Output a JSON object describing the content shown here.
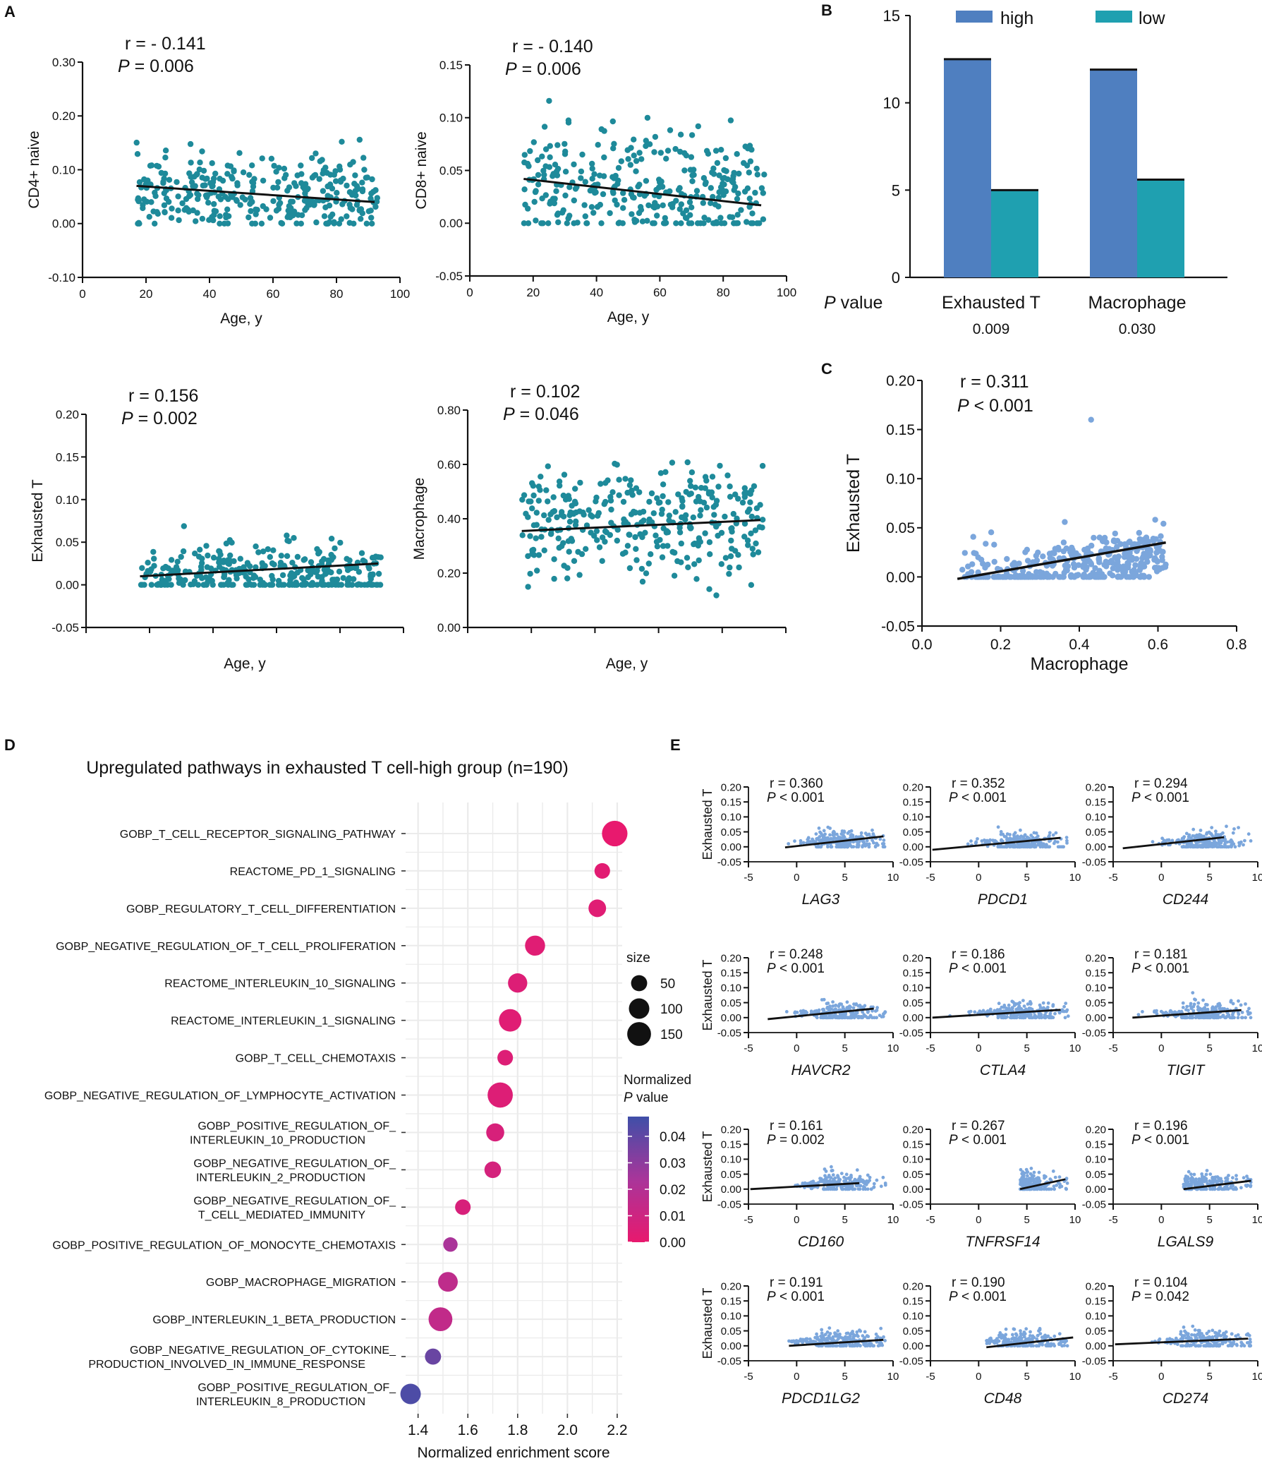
{
  "colors": {
    "teal": "#1E8A9A",
    "blue_bar": "#4F7FC0",
    "teal_bar": "#1FA0B0",
    "light_blue": "#7BA6DC",
    "fit_line": "#111111",
    "grid": "#EBEBEB",
    "p_low": "#E8196E",
    "p_mid": "#A9359A",
    "p_high": "#3F4FA8"
  },
  "panel_labels": {
    "A": "A",
    "B": "B",
    "C": "C",
    "D": "D",
    "E": "E"
  },
  "panel_a": {
    "age_label": "Age, y",
    "plots": [
      {
        "name": "cd4",
        "ylabel": "CD4+ naive",
        "r": "r = - 0.141",
        "p_prefix": "P",
        "p_rest": " = 0.006",
        "xlim": [
          0,
          100
        ],
        "ylim": [
          -0.1,
          0.3
        ],
        "xticks": [
          "0",
          "20",
          "40",
          "60",
          "80",
          "100"
        ],
        "yticks": [
          "-0.10",
          "0.00",
          "0.10",
          "0.20",
          "0.30"
        ],
        "show_xticks": true
      },
      {
        "name": "cd8",
        "ylabel": "CD8+ naive",
        "r": "r = - 0.140",
        "p_prefix": "P",
        "p_rest": " = 0.006",
        "xlim": [
          0,
          100
        ],
        "ylim": [
          -0.05,
          0.15
        ],
        "xticks": [
          "0",
          "20",
          "40",
          "60",
          "80",
          "100"
        ],
        "yticks": [
          "-0.05",
          "0.00",
          "0.05",
          "0.10",
          "0.15"
        ],
        "show_xticks": true
      },
      {
        "name": "exhausted",
        "ylabel": "Exhausted T",
        "r": "r = 0.156",
        "p_prefix": "P",
        "p_rest": " = 0.002",
        "xlim": [
          0,
          100
        ],
        "ylim": [
          -0.05,
          0.2
        ],
        "xticks": [],
        "yticks": [
          "-0.05",
          "0.00",
          "0.05",
          "0.10",
          "0.15",
          "0.20"
        ],
        "show_xticks": false
      },
      {
        "name": "macrophage",
        "ylabel": "Macrophage",
        "r": "r = 0.102",
        "p_prefix": "P",
        "p_rest": " = 0.046",
        "xlim": [
          0,
          100
        ],
        "ylim": [
          0.0,
          0.8
        ],
        "xticks": [],
        "yticks": [
          "0.00",
          "0.20",
          "0.40",
          "0.60",
          "0.80"
        ],
        "show_xticks": false
      }
    ]
  },
  "chart_data": [
    {
      "type": "bar",
      "panel": "B",
      "categories": [
        "Exhausted T",
        "Macrophage"
      ],
      "series": [
        {
          "name": "high",
          "values": [
            12.5,
            11.9
          ]
        },
        {
          "name": "low",
          "values": [
            5.0,
            5.6
          ]
        }
      ],
      "ylim": [
        0,
        15
      ],
      "yticks": [
        "0",
        "5",
        "10",
        "15"
      ],
      "p_value_label_prefix": "P",
      "p_value_label_rest": " value",
      "p_values": [
        "0.009",
        "0.030"
      ]
    },
    {
      "type": "scatter",
      "panel": "C",
      "xlabel": "Macrophage",
      "ylabel": "Exhausted T",
      "r": "r = 0.311",
      "p_prefix": "P",
      "p_rest": " < 0.001",
      "xlim": [
        0.0,
        0.8
      ],
      "ylim": [
        -0.05,
        0.2
      ],
      "xticks": [
        "0.0",
        "0.2",
        "0.4",
        "0.6",
        "0.8"
      ],
      "yticks": [
        "-0.05",
        "0.00",
        "0.05",
        "0.10",
        "0.15",
        "0.20"
      ],
      "fit": {
        "x": [
          0.09,
          0.62
        ],
        "y": [
          -0.002,
          0.035
        ]
      }
    },
    {
      "type": "scatter",
      "panel": "D",
      "subtype": "dot-plot",
      "title": "Upregulated pathways in exhausted T cell-high group (n=190)",
      "xlabel": "Normalized enrichment score",
      "xlim": [
        1.35,
        2.22
      ],
      "xticks": [
        "1.4",
        "1.6",
        "1.8",
        "2.0",
        "2.2"
      ],
      "size_legend_title": "size",
      "size_legend": [
        "50",
        "100",
        "150"
      ],
      "color_legend_title_1": "Normalized",
      "color_legend_title_2_prefix": "P",
      "color_legend_title_2_rest": " value",
      "color_legend_ticks": [
        "0.04",
        "0.03",
        "0.02",
        "0.01",
        "0.00"
      ],
      "pathways": [
        {
          "label": [
            "GOBP_T_CELL_RECEPTOR_SIGNALING_PATHWAY"
          ],
          "nes": 2.19,
          "size": 180,
          "p": 0.0
        },
        {
          "label": [
            "REACTOME_PD_1_SIGNALING"
          ],
          "nes": 2.14,
          "size": 45,
          "p": 0.002
        },
        {
          "label": [
            "GOBP_REGULATORY_T_CELL_DIFFERENTIATION"
          ],
          "nes": 2.12,
          "size": 65,
          "p": 0.003
        },
        {
          "label": [
            "GOBP_NEGATIVE_REGULATION_OF_T_CELL_PROLIFERATION"
          ],
          "nes": 1.87,
          "size": 95,
          "p": 0.003
        },
        {
          "label": [
            "REACTOME_INTERLEUKIN_10_SIGNALING"
          ],
          "nes": 1.8,
          "size": 85,
          "p": 0.004
        },
        {
          "label": [
            "REACTOME_INTERLEUKIN_1_SIGNALING"
          ],
          "nes": 1.77,
          "size": 130,
          "p": 0.003
        },
        {
          "label": [
            "GOBP_T_CELL_CHEMOTAXIS"
          ],
          "nes": 1.75,
          "size": 45,
          "p": 0.004
        },
        {
          "label": [
            "GOBP_NEGATIVE_REGULATION_OF_LYMPHOCYTE_ACTIVATION"
          ],
          "nes": 1.73,
          "size": 175,
          "p": 0.004
        },
        {
          "label": [
            "GOBP_POSITIVE_REGULATION_OF_",
            "INTERLEUKIN_10_PRODUCTION"
          ],
          "nes": 1.71,
          "size": 70,
          "p": 0.006
        },
        {
          "label": [
            "GOBP_NEGATIVE_REGULATION_OF_",
            "INTERLEUKIN_2_PRODUCTION"
          ],
          "nes": 1.7,
          "size": 55,
          "p": 0.007
        },
        {
          "label": [
            "GOBP_NEGATIVE_REGULATION_OF_",
            "T_CELL_MEDIATED_IMMUNITY"
          ],
          "nes": 1.58,
          "size": 45,
          "p": 0.006
        },
        {
          "label": [
            "GOBP_POSITIVE_REGULATION_OF_MONOCYTE_CHEMOTAXIS"
          ],
          "nes": 1.53,
          "size": 35,
          "p": 0.022
        },
        {
          "label": [
            "GOBP_MACROPHAGE_MIGRATION"
          ],
          "nes": 1.52,
          "size": 90,
          "p": 0.015
        },
        {
          "label": [
            "GOBP_INTERLEUKIN_1_BETA_PRODUCTION"
          ],
          "nes": 1.49,
          "size": 150,
          "p": 0.014
        },
        {
          "label": [
            "GOBP_NEGATIVE_REGULATION_OF_CYTOKINE_",
            "PRODUCTION_INVOLVED_IN_IMMUNE_RESPONSE"
          ],
          "nes": 1.46,
          "size": 50,
          "p": 0.036
        },
        {
          "label": [
            "GOBP_POSITIVE_REGULATION_OF_",
            "INTERLEUKIN_8_PRODUCTION"
          ],
          "nes": 1.37,
          "size": 100,
          "p": 0.042
        }
      ]
    },
    {
      "type": "scatter",
      "panel": "E",
      "ylabel": "Exhausted T",
      "xlim": [
        -5,
        10
      ],
      "ylim": [
        -0.05,
        0.2
      ],
      "xticks": [
        "-5",
        "0",
        "5",
        "10"
      ],
      "yticks": [
        "-0.05",
        "0.00",
        "0.05",
        "0.10",
        "0.15",
        "0.20"
      ],
      "genes": [
        {
          "gene": "LAG3",
          "r": "r = 0.360",
          "p_prefix": "P",
          "p_rest": " < 0.001",
          "xmin": -1.2,
          "fit": [
            -1.2,
            -0.002,
            9.0,
            0.035
          ]
        },
        {
          "gene": "PDCD1",
          "r": "r = 0.352",
          "p_prefix": "P",
          "p_rest": " < 0.001",
          "xmin": -4.8,
          "fit": [
            -4.8,
            -0.01,
            8.5,
            0.03
          ]
        },
        {
          "gene": "CD244",
          "r": "r = 0.294",
          "p_prefix": "P",
          "p_rest": " < 0.001",
          "xmin": -4.0,
          "fit": [
            -4.0,
            -0.005,
            6.5,
            0.032
          ]
        },
        {
          "gene": "HAVCR2",
          "r": "r = 0.248",
          "p_prefix": "P",
          "p_rest": " < 0.001",
          "xmin": -3.0,
          "fit": [
            -3.0,
            -0.005,
            8.0,
            0.03
          ]
        },
        {
          "gene": "CTLA4",
          "r": "r = 0.186",
          "p_prefix": "P",
          "p_rest": " < 0.001",
          "xmin": -4.8,
          "fit": [
            -4.8,
            0.0,
            8.5,
            0.026
          ]
        },
        {
          "gene": "TIGIT",
          "r": "r = 0.181",
          "p_prefix": "P",
          "p_rest": " < 0.001",
          "xmin": -3.0,
          "fit": [
            -3.0,
            0.0,
            8.3,
            0.025
          ]
        },
        {
          "gene": "CD160",
          "r": "r = 0.161",
          "p_prefix": "P",
          "p_rest": " = 0.002",
          "xmin": -4.8,
          "fit": [
            -4.8,
            0.0,
            6.5,
            0.02
          ]
        },
        {
          "gene": "TNFRSF14",
          "r": "r = 0.267",
          "p_prefix": "P",
          "p_rest": " < 0.001",
          "xmin": 4.3,
          "fit": [
            4.3,
            0.0,
            9.0,
            0.033
          ]
        },
        {
          "gene": "LGALS9",
          "r": "r = 0.196",
          "p_prefix": "P",
          "p_rest": " < 0.001",
          "xmin": 2.3,
          "fit": [
            2.3,
            0.0,
            9.3,
            0.028
          ]
        },
        {
          "gene": "PDCD1LG2",
          "r": "r = 0.191",
          "p_prefix": "P",
          "p_rest": " < 0.001",
          "xmin": -0.8,
          "fit": [
            -0.8,
            0.0,
            9.0,
            0.02
          ]
        },
        {
          "gene": "CD48",
          "r": "r = 0.190",
          "p_prefix": "P",
          "p_rest": " < 0.001",
          "xmin": 0.8,
          "fit": [
            0.8,
            -0.005,
            9.8,
            0.028
          ]
        },
        {
          "gene": "CD274",
          "r": "r = 0.104",
          "p_prefix": "P",
          "p_rest": " = 0.042",
          "xmin": -4.8,
          "fit": [
            -4.8,
            0.005,
            9.0,
            0.024
          ]
        }
      ]
    }
  ]
}
